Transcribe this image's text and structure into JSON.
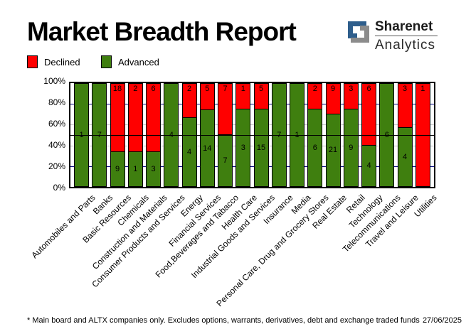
{
  "header": {
    "title": "Market Breadth Report"
  },
  "logo": {
    "brand_top": "Sharenet",
    "brand_bottom": "Analytics",
    "icon": "sharenet-s-icon",
    "blue": "#2E5E8C",
    "gray": "#8C8C8C"
  },
  "legend": [
    {
      "label": "Declined",
      "color": "#FF0000"
    },
    {
      "label": "Advanced",
      "color": "#3F7F0F"
    }
  ],
  "chart_data": {
    "type": "bar",
    "variant": "100% stacked column",
    "title": "Market Breadth Report",
    "categories": [
      "Automobiles and Parts",
      "Banks",
      "Basic Resources",
      "Chemicals",
      "Construction and Materials",
      "Consumer Products and Services",
      "Energy",
      "Financial Services",
      "Food,Beverages and Tabacco",
      "Health Care",
      "Industrial Goods and Services",
      "Insurance",
      "Media",
      "Personal Care, Drug and Grocery Stores",
      "Real Estate",
      "Retail",
      "Technology",
      "Telecommunications",
      "Travel and Leisure",
      "Utilities"
    ],
    "series": [
      {
        "name": "Declined",
        "color": "#FF0000",
        "values": [
          0,
          0,
          18,
          2,
          6,
          0,
          2,
          5,
          7,
          1,
          5,
          0,
          0,
          2,
          9,
          3,
          6,
          0,
          3,
          1
        ]
      },
      {
        "name": "Advanced",
        "color": "#3F7F0F",
        "values": [
          1,
          7,
          9,
          1,
          3,
          4,
          4,
          14,
          7,
          3,
          15,
          7,
          1,
          6,
          21,
          9,
          4,
          6,
          4,
          0
        ]
      }
    ],
    "y_ticks": [
      "100%",
      "80%",
      "60%",
      "40%",
      "20%",
      "0%"
    ],
    "ylim": [
      0,
      100
    ],
    "grid": {
      "navy_lines_pct": [
        20,
        80
      ],
      "gray_lines_pct": [
        40,
        60
      ],
      "black_line_pct": 50,
      "navy_color": "#000080",
      "gray_color": "#C8C8C8"
    },
    "legend_position": "top-left",
    "value_labels": "inside segments"
  },
  "footer": {
    "note": "* Main board and ALTX companies only. Excludes options, warrants, derivatives, debt and exchange traded funds",
    "date": "27/06/2025"
  }
}
